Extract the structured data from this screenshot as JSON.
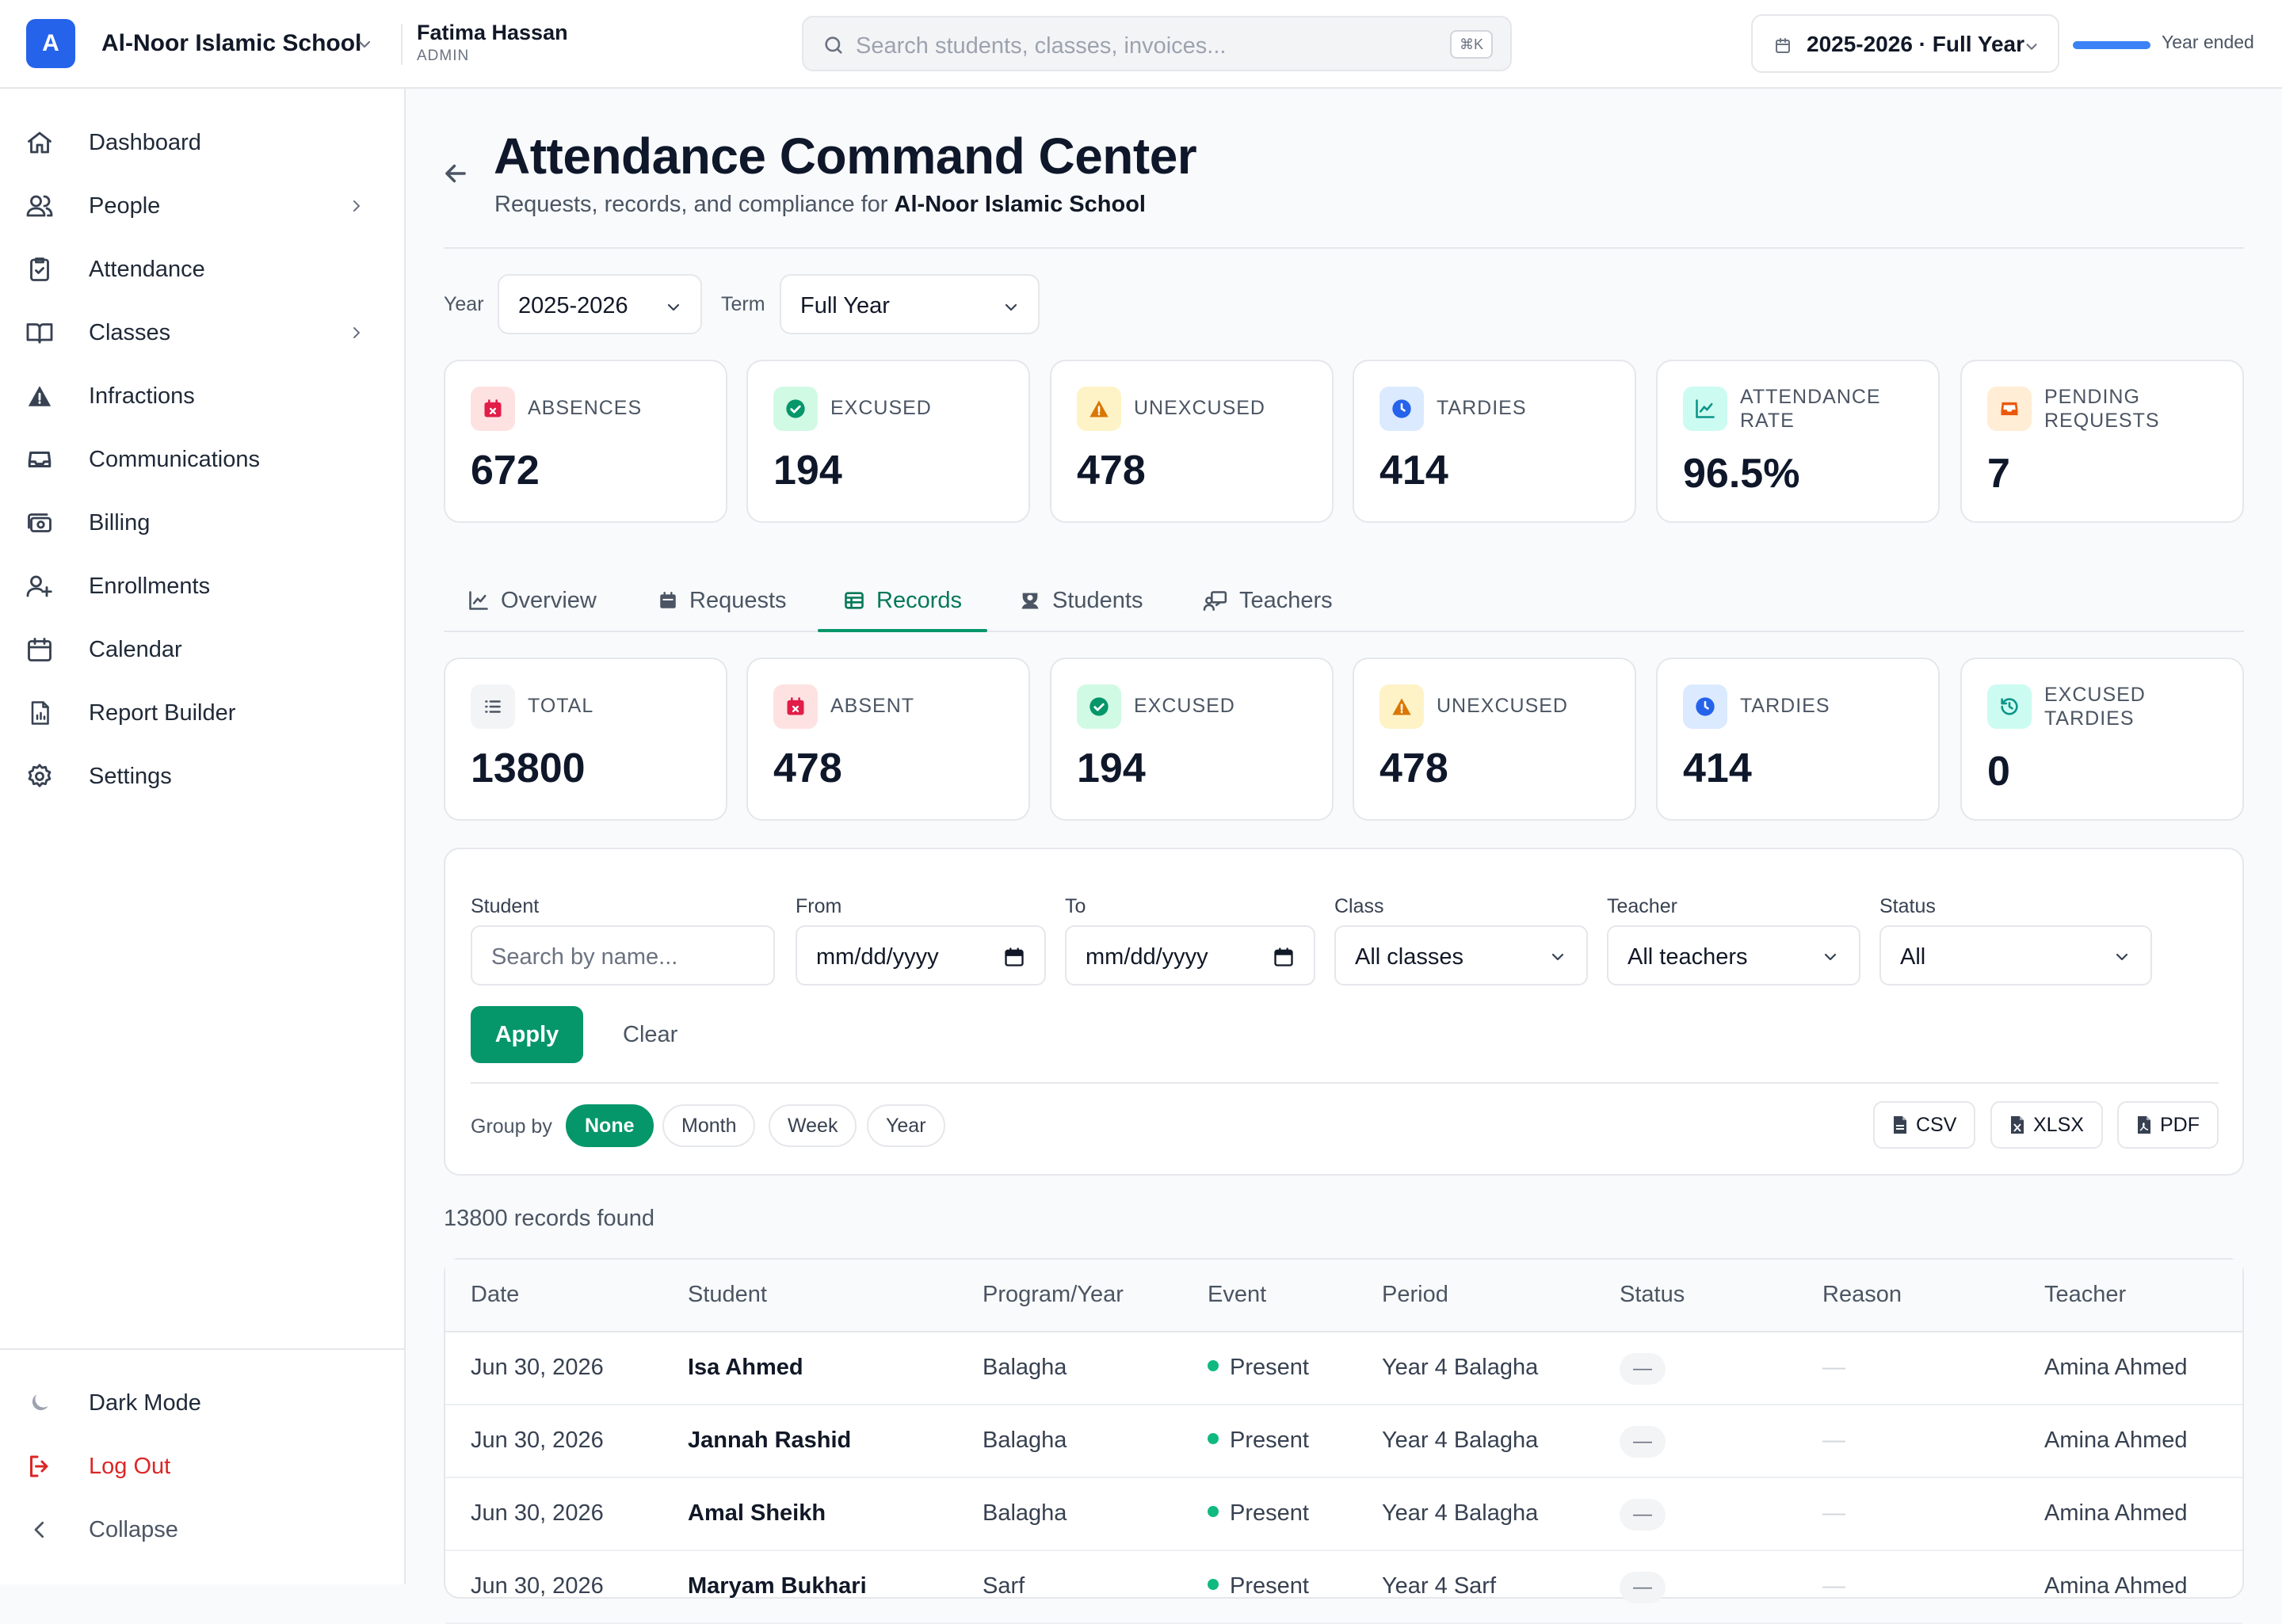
{
  "topbar": {
    "logo_letter": "A",
    "school_name": "Al-Noor Islamic School",
    "user_name": "Fatima Hassan",
    "user_role": "ADMIN",
    "search_placeholder": "Search students, classes, invoices...",
    "search_shortcut": "⌘K",
    "year_selector": "2025-2026 · Full Year",
    "year_progress": 1.0,
    "year_status": "Year ended"
  },
  "sidebar": {
    "items": [
      {
        "label": "Dashboard",
        "icon": "home-icon",
        "chevron": false
      },
      {
        "label": "People",
        "icon": "users-icon",
        "chevron": true
      },
      {
        "label": "Attendance",
        "icon": "clipboard-check-icon",
        "chevron": false
      },
      {
        "label": "Classes",
        "icon": "book-open-icon",
        "chevron": true
      },
      {
        "label": "Infractions",
        "icon": "warning-icon",
        "chevron": false
      },
      {
        "label": "Communications",
        "icon": "inbox-icon",
        "chevron": false
      },
      {
        "label": "Billing",
        "icon": "cash-icon",
        "chevron": false
      },
      {
        "label": "Enrollments",
        "icon": "user-plus-icon",
        "chevron": false
      },
      {
        "label": "Calendar",
        "icon": "calendar-icon",
        "chevron": false
      },
      {
        "label": "Report Builder",
        "icon": "report-icon",
        "chevron": false
      },
      {
        "label": "Settings",
        "icon": "gear-icon",
        "chevron": false
      }
    ],
    "dark_mode": "Dark Mode",
    "logout": "Log Out",
    "collapse": "Collapse"
  },
  "page": {
    "title": "Attendance Command Center",
    "subtitle_prefix": "Requests, records, and compliance for ",
    "subtitle_school": "Al-Noor Islamic School",
    "year_label": "Year",
    "year_value": "2025-2026",
    "term_label": "Term",
    "term_value": "Full Year"
  },
  "summary_cards": [
    {
      "label": "ABSENCES",
      "value": "672",
      "icon": "calendar-x-icon"
    },
    {
      "label": "EXCUSED",
      "value": "194",
      "icon": "check-circle-icon"
    },
    {
      "label": "UNEXCUSED",
      "value": "478",
      "icon": "warning-icon"
    },
    {
      "label": "TARDIES",
      "value": "414",
      "icon": "clock-icon"
    },
    {
      "label": "ATTENDANCE RATE",
      "value": "96.5%",
      "icon": "chart-line-icon"
    },
    {
      "label": "PENDING REQUESTS",
      "value": "7",
      "icon": "inbox-icon"
    }
  ],
  "tabs": [
    {
      "label": "Overview",
      "icon": "chart-line-icon",
      "active": false
    },
    {
      "label": "Requests",
      "icon": "calendar-icon",
      "active": false
    },
    {
      "label": "Records",
      "icon": "table-icon",
      "active": true
    },
    {
      "label": "Students",
      "icon": "student-icon",
      "active": false
    },
    {
      "label": "Teachers",
      "icon": "teacher-icon",
      "active": false
    }
  ],
  "record_cards": [
    {
      "label": "TOTAL",
      "value": "13800",
      "icon": "list-icon"
    },
    {
      "label": "ABSENT",
      "value": "478",
      "icon": "calendar-x-icon"
    },
    {
      "label": "EXCUSED",
      "value": "194",
      "icon": "check-circle-icon"
    },
    {
      "label": "UNEXCUSED",
      "value": "478",
      "icon": "warning-icon"
    },
    {
      "label": "TARDIES",
      "value": "414",
      "icon": "clock-icon"
    },
    {
      "label": "EXCUSED TARDIES",
      "value": "0",
      "icon": "history-icon"
    }
  ],
  "filters": {
    "student_label": "Student",
    "student_placeholder": "Search by name...",
    "from_label": "From",
    "from_value": "mm/dd/yyyy",
    "to_label": "To",
    "to_value": "mm/dd/yyyy",
    "class_label": "Class",
    "class_value": "All classes",
    "teacher_label": "Teacher",
    "teacher_value": "All teachers",
    "status_label": "Status",
    "status_value": "All",
    "apply": "Apply",
    "clear": "Clear",
    "group_by_label": "Group by",
    "group_by_options": [
      "None",
      "Month",
      "Week",
      "Year"
    ],
    "group_by_selected": "None",
    "export": [
      "CSV",
      "XLSX",
      "PDF"
    ]
  },
  "records_found": "13800 records found",
  "table": {
    "columns": [
      "Date",
      "Student",
      "Program/Year",
      "Event",
      "Period",
      "Status",
      "Reason",
      "Teacher"
    ],
    "rows": [
      {
        "date": "Jun 30, 2026",
        "student": "Isa Ahmed",
        "program": "Balagha",
        "event": "Present",
        "period": "Year 4 Balagha",
        "status": "—",
        "reason": "—",
        "teacher": "Amina Ahmed"
      },
      {
        "date": "Jun 30, 2026",
        "student": "Jannah Rashid",
        "program": "Balagha",
        "event": "Present",
        "period": "Year 4 Balagha",
        "status": "—",
        "reason": "—",
        "teacher": "Amina Ahmed"
      },
      {
        "date": "Jun 30, 2026",
        "student": "Amal Sheikh",
        "program": "Balagha",
        "event": "Present",
        "period": "Year 4 Balagha",
        "status": "—",
        "reason": "—",
        "teacher": "Amina Ahmed"
      },
      {
        "date": "Jun 30, 2026",
        "student": "Maryam Bukhari",
        "program": "Sarf",
        "event": "Present",
        "period": "Year 4 Sarf",
        "status": "—",
        "reason": "—",
        "teacher": "Amina Ahmed"
      }
    ]
  },
  "colors": {
    "brand": "#2563eb",
    "accent": "#059669",
    "danger": "#dc2626"
  }
}
